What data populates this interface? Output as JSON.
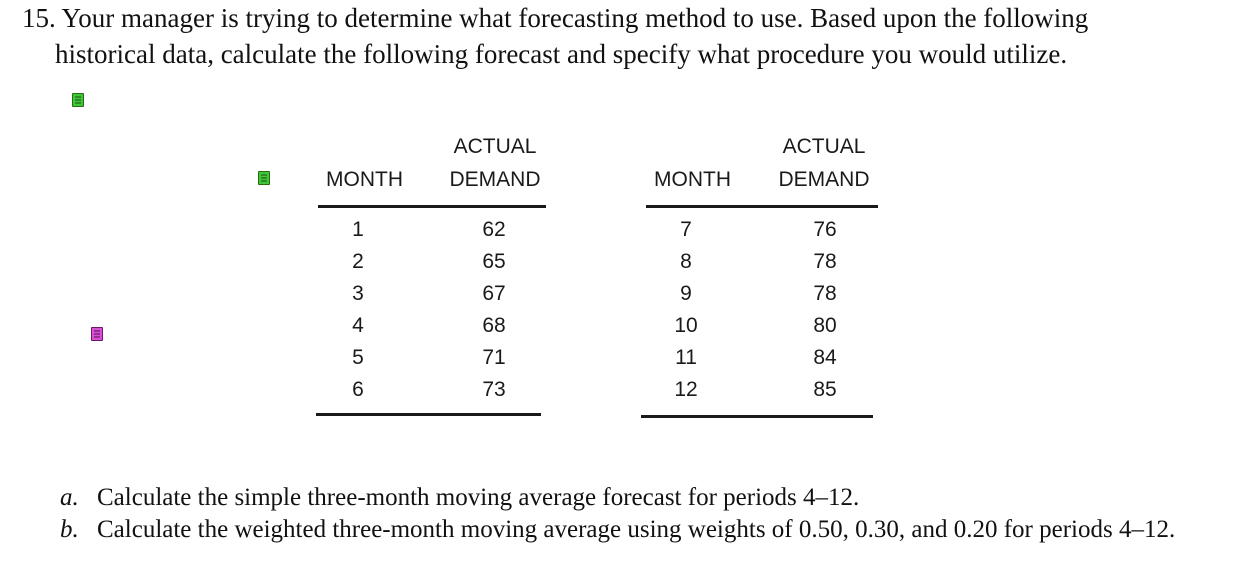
{
  "problem": {
    "number": "15.",
    "line1": "Your manager is trying to determine what forecasting method to use. Based upon the following",
    "line2": "historical data, calculate the following forecast and specify what procedure you would utilize."
  },
  "icons": {
    "note_green": "note-icon",
    "note_pink": "note-icon",
    "colors": {
      "green": "#3fc73a",
      "pink": "#d94fd6"
    }
  },
  "table": {
    "headers": {
      "month": "MONTH",
      "actual": "ACTUAL",
      "demand": "DEMAND"
    },
    "left": [
      {
        "month": "1",
        "demand": "62"
      },
      {
        "month": "2",
        "demand": "65"
      },
      {
        "month": "3",
        "demand": "67"
      },
      {
        "month": "4",
        "demand": "68"
      },
      {
        "month": "5",
        "demand": "71"
      },
      {
        "month": "6",
        "demand": "73"
      }
    ],
    "right": [
      {
        "month": "7",
        "demand": "76"
      },
      {
        "month": "8",
        "demand": "78"
      },
      {
        "month": "9",
        "demand": "78"
      },
      {
        "month": "10",
        "demand": "80"
      },
      {
        "month": "11",
        "demand": "84"
      },
      {
        "month": "12",
        "demand": "85"
      }
    ]
  },
  "parts": [
    {
      "label": "a.",
      "text": "Calculate the simple three-month moving average forecast for periods 4–12."
    },
    {
      "label": "b.",
      "text": "Calculate the weighted three-month moving average using weights of 0.50, 0.30, and 0.20 for periods 4–12."
    }
  ]
}
